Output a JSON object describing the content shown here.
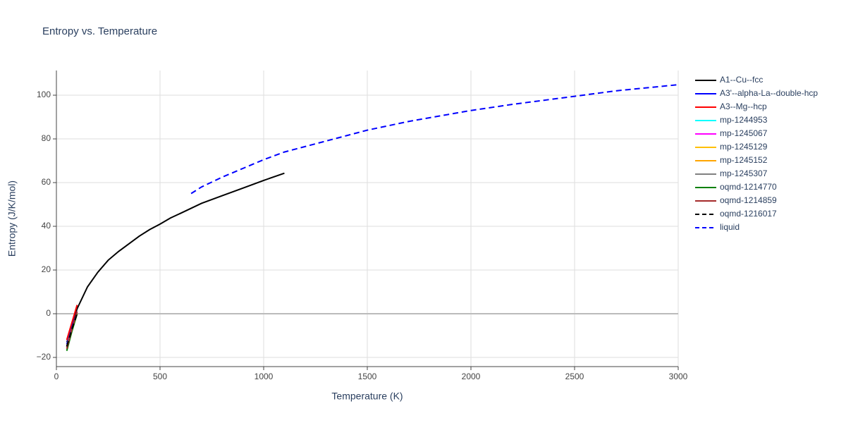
{
  "chart_data": {
    "type": "line",
    "title": "Entropy vs. Temperature",
    "x_label": "Temperature (K)",
    "y_label": "Entropy (J/K/mol)",
    "xlim": [
      0,
      3000
    ],
    "ylim": [
      -24.2,
      111.3
    ],
    "xticks": [
      0,
      500,
      1000,
      1500,
      2000,
      2500,
      3000
    ],
    "yticks": [
      {
        "value": -20,
        "label": "−20"
      },
      0,
      20,
      40,
      60,
      80,
      100
    ],
    "grid": true,
    "legend": "right",
    "series": [
      {
        "name": "A1--Cu--fcc",
        "color": "#000000",
        "dash": false,
        "x": [
          51,
          100,
          150,
          200,
          250,
          300,
          350,
          400,
          450,
          500,
          550,
          600,
          700,
          800,
          900,
          1000,
          1100
        ],
        "values": [
          -13,
          2.3,
          12.3,
          19,
          24.5,
          28.5,
          32,
          35.5,
          38.5,
          41,
          43.8,
          46,
          50.5,
          54,
          57.5,
          61,
          64.3
        ]
      },
      {
        "name": "A3'--alpha-La--double-hcp",
        "color": "#0000ff",
        "dash": false,
        "x": [
          50,
          75,
          100
        ],
        "values": [
          -14,
          -6,
          1
        ]
      },
      {
        "name": "A3--Mg--hcp",
        "color": "#ff0000",
        "dash": false,
        "x": [
          50,
          75,
          100
        ],
        "values": [
          -12,
          -4,
          4
        ]
      },
      {
        "name": "mp-1244953",
        "color": "#00ffff",
        "dash": false,
        "x": [
          50,
          75,
          100
        ],
        "values": [
          -15,
          -7,
          0
        ]
      },
      {
        "name": "mp-1245067",
        "color": "#ff00ff",
        "dash": false,
        "x": [
          50,
          75,
          100
        ],
        "values": [
          -15,
          -7,
          0
        ]
      },
      {
        "name": "mp-1245129",
        "color": "#ffbf00",
        "dash": false,
        "x": [
          50,
          75,
          100
        ],
        "values": [
          -15,
          -7,
          0
        ]
      },
      {
        "name": "mp-1245152",
        "color": "#ffa500",
        "dash": false,
        "x": [
          50,
          75,
          100
        ],
        "values": [
          -15,
          -7,
          0
        ]
      },
      {
        "name": "mp-1245307",
        "color": "#808080",
        "dash": false,
        "x": [
          50,
          75,
          100
        ],
        "values": [
          -15,
          -7,
          0
        ]
      },
      {
        "name": "oqmd-1214770",
        "color": "#008000",
        "dash": false,
        "x": [
          50,
          75,
          100
        ],
        "values": [
          -17,
          -8,
          0
        ]
      },
      {
        "name": "oqmd-1214859",
        "color": "#a52a2a",
        "dash": false,
        "x": [
          50,
          75,
          100
        ],
        "values": [
          -16,
          -7,
          1
        ]
      },
      {
        "name": "oqmd-1216017",
        "color": "#000000",
        "dash": true,
        "x": [
          50,
          75,
          100
        ],
        "values": [
          -15,
          -7,
          0
        ]
      },
      {
        "name": "liquid",
        "color": "#0000ff",
        "dash": true,
        "x": [
          650,
          700,
          800,
          900,
          1000,
          1100,
          1200,
          1300,
          1400,
          1500,
          1700,
          2000,
          2200,
          2500,
          2700,
          3000
        ],
        "values": [
          55,
          58,
          62.5,
          66.5,
          70.5,
          74,
          76.5,
          79,
          81.5,
          84,
          88,
          93,
          95.8,
          99.5,
          102,
          104.8
        ]
      }
    ]
  }
}
